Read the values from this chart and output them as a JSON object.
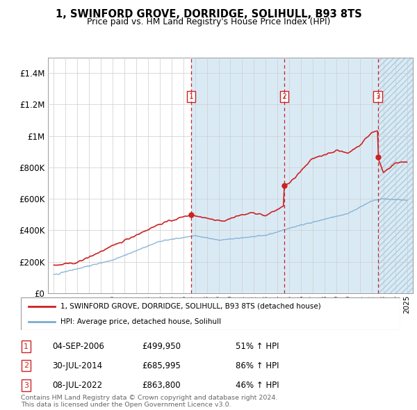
{
  "title": "1, SWINFORD GROVE, DORRIDGE, SOLIHULL, B93 8TS",
  "subtitle": "Price paid vs. HM Land Registry's House Price Index (HPI)",
  "ylim": [
    0,
    1500000
  ],
  "xlim": [
    1994.5,
    2025.5
  ],
  "yticks": [
    0,
    200000,
    400000,
    600000,
    800000,
    1000000,
    1200000,
    1400000
  ],
  "ytick_labels": [
    "£0",
    "£200K",
    "£400K",
    "£600K",
    "£800K",
    "£1M",
    "£1.2M",
    "£1.4M"
  ],
  "sale_dates": [
    2006.67,
    2014.58,
    2022.52
  ],
  "sale_prices": [
    499950,
    685995,
    863800
  ],
  "sale_labels": [
    "1",
    "2",
    "3"
  ],
  "sale_date_strs": [
    "04-SEP-2006",
    "30-JUL-2014",
    "08-JUL-2022"
  ],
  "sale_price_strs": [
    "£499,950",
    "£685,995",
    "£863,800"
  ],
  "sale_hpi_strs": [
    "51% ↑ HPI",
    "86% ↑ HPI",
    "46% ↑ HPI"
  ],
  "legend_line1": "1, SWINFORD GROVE, DORRIDGE, SOLIHULL, B93 8TS (detached house)",
  "legend_line2": "HPI: Average price, detached house, Solihull",
  "footer1": "Contains HM Land Registry data © Crown copyright and database right 2024.",
  "footer2": "This data is licensed under the Open Government Licence v3.0.",
  "red_color": "#cc2222",
  "blue_color": "#7aabcf",
  "shading_color": "#daeaf5",
  "grid_color": "#cccccc"
}
